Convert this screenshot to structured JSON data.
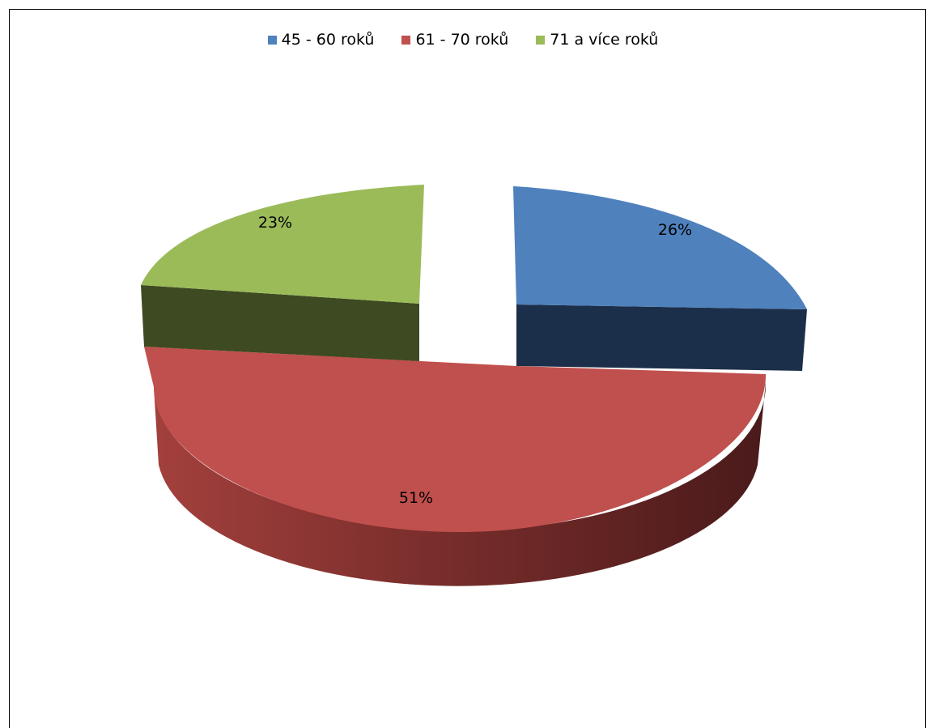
{
  "chart_data": {
    "type": "pie",
    "title": "",
    "legend_position": "top",
    "slices": [
      {
        "name": "45  - 60 roků",
        "value": 26,
        "label": "26%",
        "color": "#4F81BD"
      },
      {
        "name": "61 - 70 roků",
        "value": 51,
        "label": "51%",
        "color": "#C0504D"
      },
      {
        "name": "71 a více roků",
        "value": 23,
        "label": "23%",
        "color": "#9BBB59"
      }
    ]
  }
}
